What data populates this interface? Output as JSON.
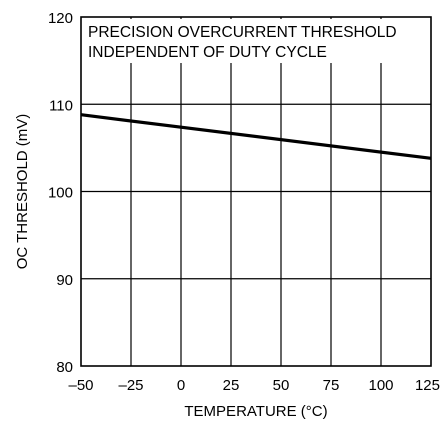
{
  "chart_data": {
    "type": "line",
    "title": "",
    "annotation_lines": [
      "PRECISION OVERCURRENT THRESHOLD",
      "INDEPENDENT OF DUTY CYCLE"
    ],
    "xlabel": "TEMPERATURE (°C)",
    "ylabel": "OC THRESHOLD (mV)",
    "xlim": [
      -50,
      125
    ],
    "ylim": [
      80,
      120
    ],
    "xticks": [
      -50,
      -25,
      0,
      25,
      50,
      75,
      100,
      125
    ],
    "xtick_labels": [
      "–50",
      "–25",
      "0",
      "25",
      "50",
      "75",
      "100",
      "125"
    ],
    "yticks": [
      80,
      90,
      100,
      110,
      120
    ],
    "ytick_labels": [
      "80",
      "90",
      "100",
      "110",
      "120"
    ],
    "grid": true,
    "series": [
      {
        "x": [
          -50,
          125
        ],
        "y": [
          108.8,
          103.8
        ]
      }
    ],
    "colors": {
      "line": "#000000",
      "grid": "#000000",
      "background": "#ffffff"
    }
  }
}
